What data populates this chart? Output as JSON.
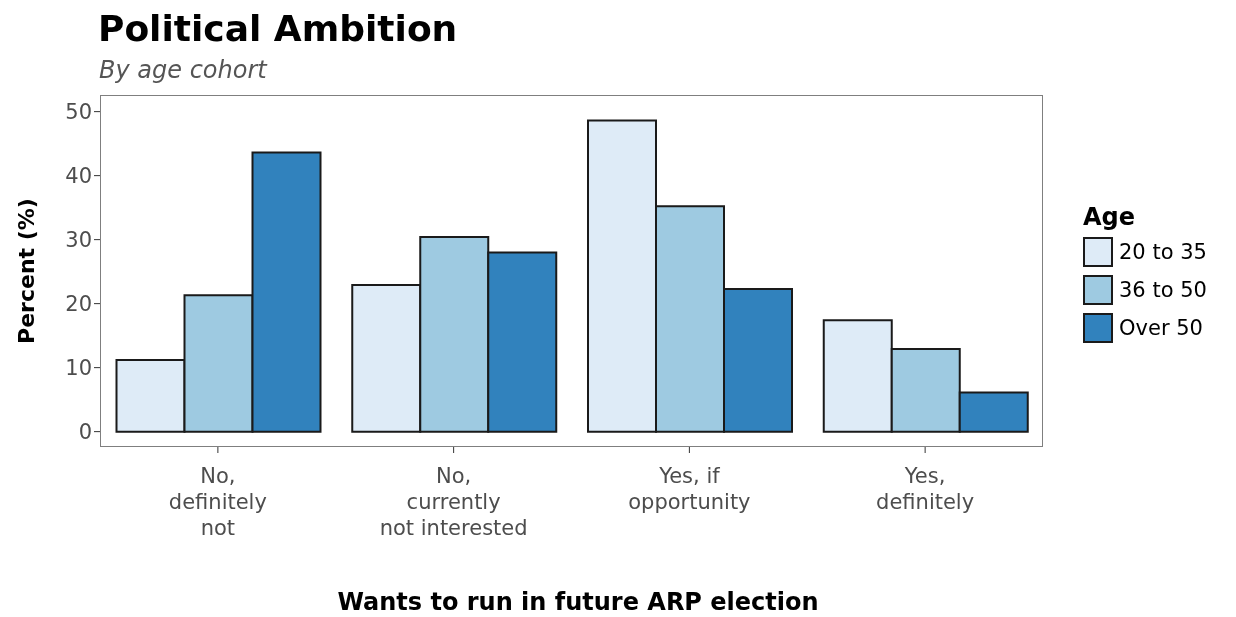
{
  "chart_data": {
    "type": "bar",
    "title": "Political Ambition",
    "subtitle": "By age cohort",
    "xlabel": "Wants to run in future ARP election",
    "ylabel": "Percent (%)",
    "legend_title": "Age",
    "legend": "right",
    "categories": [
      "No,\ndefinitely\nnot",
      "No,\ncurrently\nnot interested",
      "Yes, if\nopportunity",
      "Yes,\ndefinitely"
    ],
    "series": [
      {
        "name": "20 to 35",
        "color": "#deebf7",
        "values": [
          11.2,
          22.9,
          48.6,
          17.4
        ]
      },
      {
        "name": "36 to 50",
        "color": "#9ecae1",
        "values": [
          21.3,
          30.4,
          35.2,
          12.9
        ]
      },
      {
        "name": "Over 50",
        "color": "#3182bd",
        "values": [
          43.6,
          28.0,
          22.3,
          6.1
        ]
      }
    ],
    "ylim": [
      -2.4,
      52.6
    ],
    "yticks": [
      0,
      10,
      20,
      30,
      40,
      50
    ]
  }
}
